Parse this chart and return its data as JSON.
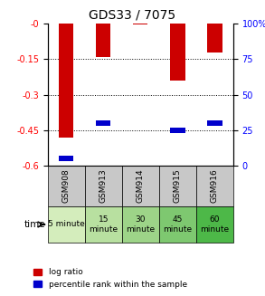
{
  "title": "GDS33 / 7075",
  "samples": [
    "GSM908",
    "GSM913",
    "GSM914",
    "GSM915",
    "GSM916"
  ],
  "time_labels": [
    "5 minute",
    "15\nminute",
    "30\nminute",
    "45\nminute",
    "60\nminute"
  ],
  "time_colors": [
    "#d4edbc",
    "#b8e0a0",
    "#9dd488",
    "#7ec870",
    "#4db848"
  ],
  "log_ratios": [
    -0.48,
    -0.14,
    -0.005,
    -0.24,
    -0.12
  ],
  "percentile_ranks": [
    0.05,
    0.3,
    0.0,
    0.25,
    0.3
  ],
  "ylim": [
    -0.6,
    0.0
  ],
  "yticks": [
    0.0,
    -0.15,
    -0.3,
    -0.45,
    -0.6
  ],
  "ytick_labels": [
    "-0",
    "-0.15",
    "-0.3",
    "-0.45",
    "-0.6"
  ],
  "right_yticks": [
    0,
    25,
    50,
    75,
    100
  ],
  "right_ytick_labels": [
    "0",
    "25",
    "50",
    "75",
    "100%"
  ],
  "bar_color": "#cc0000",
  "percentile_color": "#0000cc",
  "bar_width": 0.4,
  "background_color": "#ffffff",
  "grid_color": "#000000",
  "sample_bg_color": "#c8c8c8",
  "legend_red_label": "log ratio",
  "legend_blue_label": "percentile rank within the sample"
}
